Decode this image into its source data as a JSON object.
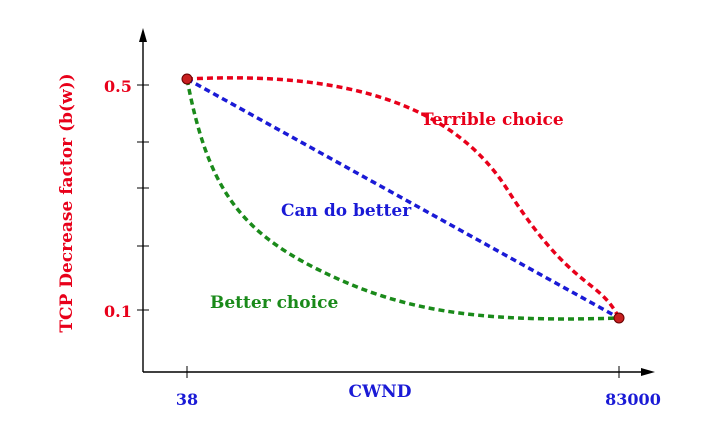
{
  "chart_data": {
    "type": "line",
    "xlabel": "CWND",
    "ylabel": "TCP Decrease factor (b(w))",
    "x_tick_labels": [
      "38",
      "83000"
    ],
    "y_tick_labels": [
      "0.5",
      "0.1"
    ],
    "xlim": [
      38,
      83000
    ],
    "ylim": [
      0.1,
      0.5
    ],
    "endpoints": [
      {
        "x": 38,
        "y": 0.5
      },
      {
        "x": 83000,
        "y": 0.1
      }
    ],
    "series": [
      {
        "name": "Terrible choice",
        "shape": "concave",
        "color": "#e8001a"
      },
      {
        "name": "Can do better",
        "shape": "linear",
        "color": "#1a1ad6"
      },
      {
        "name": "Better choice",
        "shape": "convex",
        "color": "#1a8a1a"
      }
    ],
    "colors": {
      "axis_label": "#e8001a",
      "tick_label": "#1a1ad6",
      "xlabel": "#1a1ad6",
      "endpoint": "#c82020"
    }
  }
}
